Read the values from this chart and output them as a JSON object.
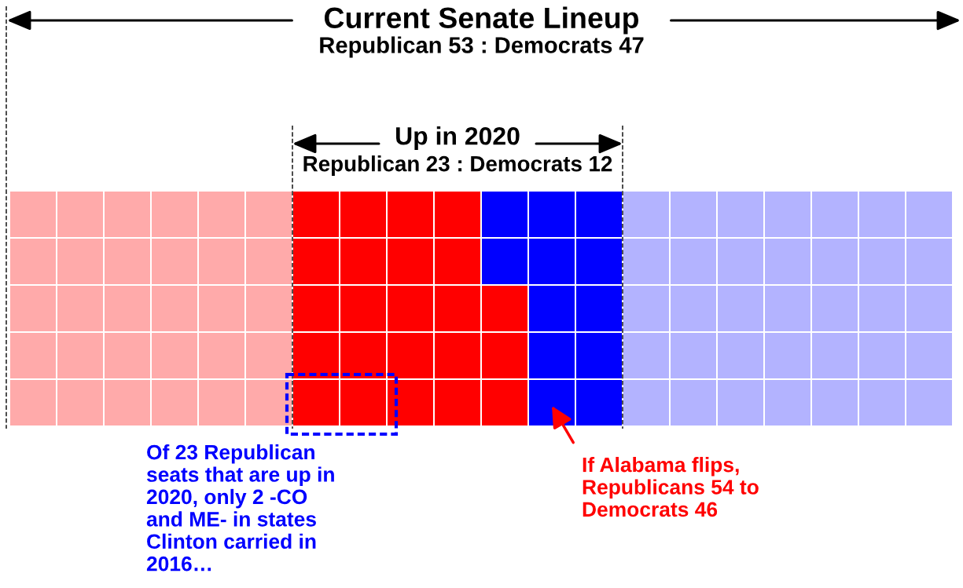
{
  "chart_data": {
    "type": "other",
    "title": "Current Senate Lineup",
    "categories": [
      "Republican",
      "Democrats"
    ],
    "data_labels": true,
    "series": [
      {
        "values": [
          53,
          47
        ],
        "colors": [
          "#ffaaaa",
          "#b3b3ff"
        ]
      },
      {
        "values": [
          23,
          12
        ],
        "colors": [
          "#ff0000",
          "#0000ff"
        ]
      }
    ],
    "annotations": [
      ":",
      "Up in 2020",
      ":",
      "Of 23 Republican\nseats that are up in\n2020, only 2 -CO\nand ME- in states\nClinton carried in\n2016…",
      "If Alabama flips,\nRepublicans 54 to\nDemocrats 46"
    ]
  }
}
